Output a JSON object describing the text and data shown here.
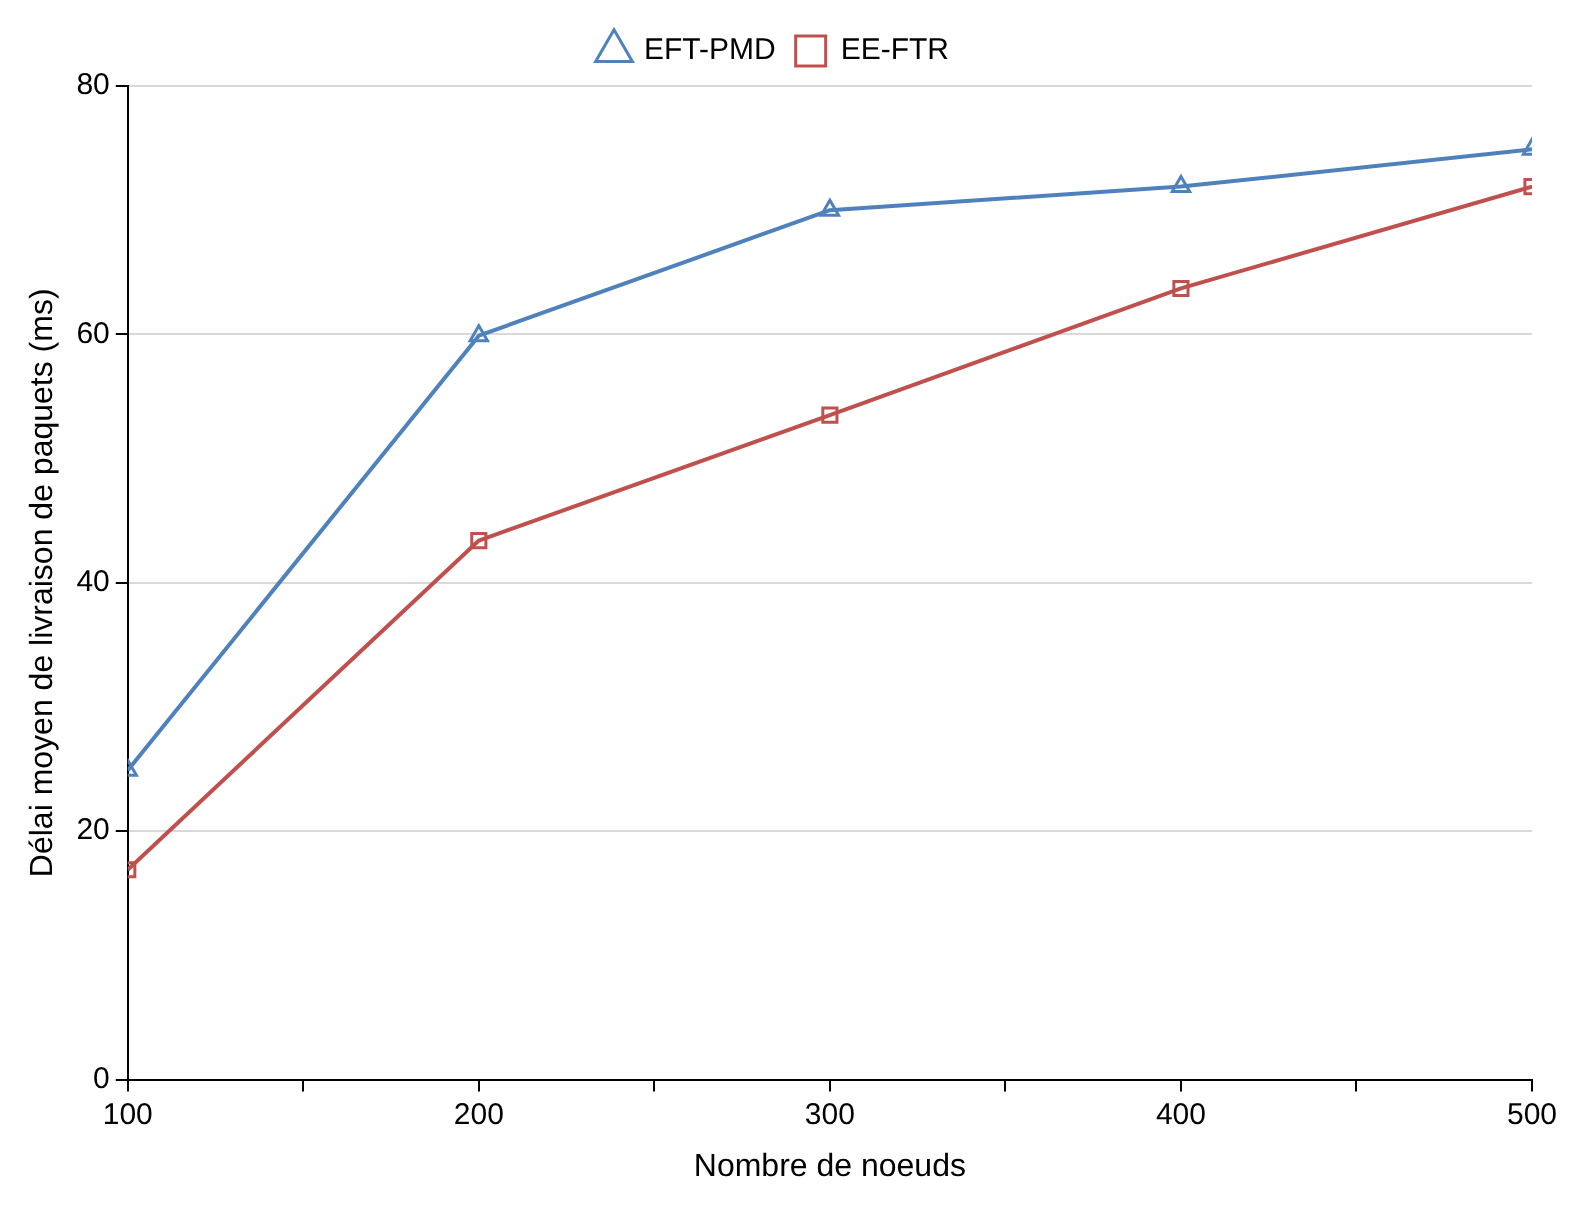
{
  "chart_data": {
    "type": "line",
    "xlabel": "Nombre de noeuds",
    "ylabel": "Délai moyen de livraison de paquets (ms)",
    "x": [
      100,
      200,
      300,
      400,
      500
    ],
    "series": [
      {
        "name": "EFT-PMD",
        "color": "#4f81bd",
        "marker": "triangle",
        "values": [
          24.9,
          59.9,
          70,
          71.9,
          74.9
        ]
      },
      {
        "name": "EE-FTR",
        "color": "#c0504d",
        "marker": "square",
        "values": [
          16.9,
          43.4,
          53.5,
          63.7,
          71.9
        ]
      }
    ],
    "xlim": [
      100,
      500
    ],
    "xticks": [
      100,
      {
        "value": 150,
        "label": null
      },
      200,
      {
        "value": 250,
        "label": null
      },
      300,
      {
        "value": 350,
        "label": null
      },
      400,
      {
        "value": 450,
        "label": null
      },
      500
    ],
    "ylim": [
      0,
      80
    ],
    "yticks": [
      0,
      20,
      40,
      60,
      80
    ],
    "grid": "y",
    "legend": "top",
    "line_style": "solid"
  }
}
